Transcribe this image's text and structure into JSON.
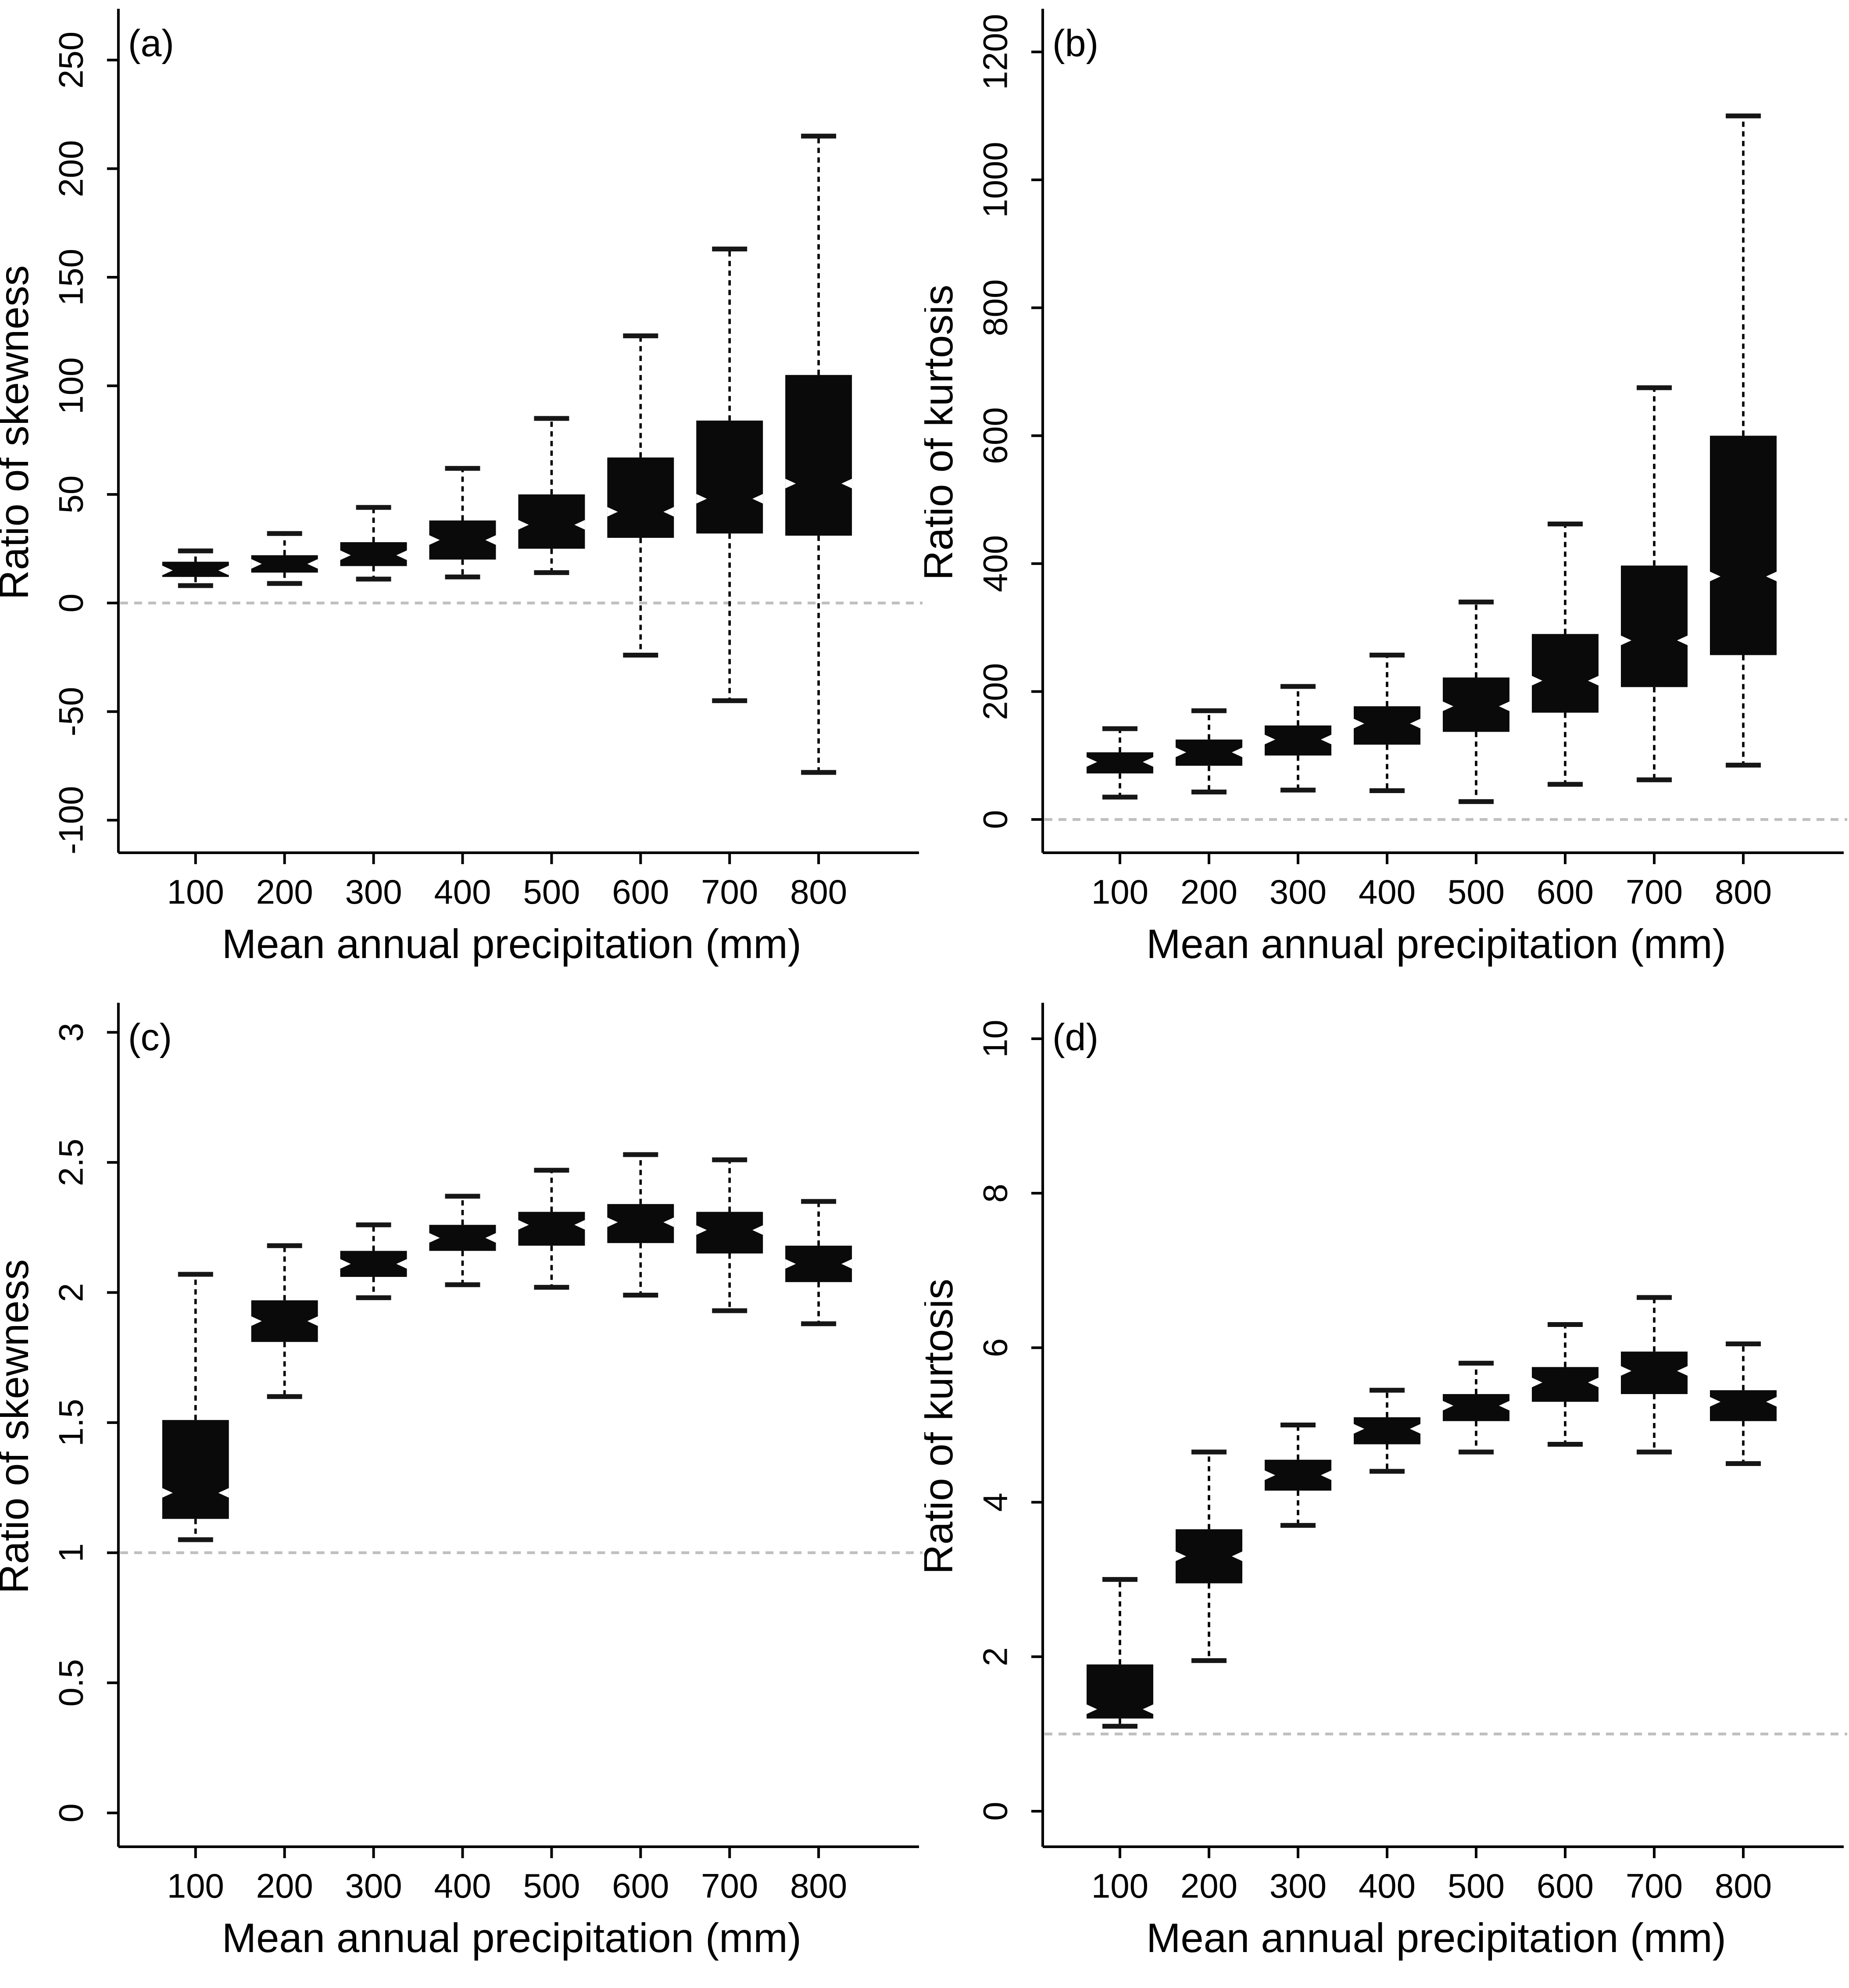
{
  "figure": {
    "background": "#ffffff",
    "text_color": "#000000",
    "box_fill": "#0a0a0a",
    "ref_line_color": "#bfbfbf",
    "x_axis_title": "Mean annual precipitation (mm)",
    "panel_letters": [
      "(a)",
      "(b)",
      "(c)",
      "(d)"
    ]
  },
  "chart_data": [
    {
      "type": "boxplot",
      "panel_label": "(a)",
      "title": "",
      "xlabel": "Mean annual precipitation (mm)",
      "ylabel": "Ratio of skewness",
      "categories": [
        100,
        200,
        300,
        400,
        500,
        600,
        700,
        800
      ],
      "xtick_labels": [
        "100",
        "200",
        "300",
        "400",
        "500",
        "600",
        "700",
        "800"
      ],
      "yticks": [
        -100,
        -50,
        0,
        50,
        100,
        150,
        200,
        250
      ],
      "ytick_labels": [
        "-100",
        "-50",
        "0",
        "50",
        "100",
        "150",
        "200",
        "250"
      ],
      "ylim": [
        -115,
        272
      ],
      "ref_line": 0,
      "legend": "none",
      "grid": false,
      "boxes": [
        {
          "category": 100,
          "whisker_low": 8,
          "q1": 12,
          "median": 15,
          "q3": 19,
          "whisker_high": 24
        },
        {
          "category": 200,
          "whisker_low": 9,
          "q1": 14,
          "median": 18,
          "q3": 22,
          "whisker_high": 32
        },
        {
          "category": 300,
          "whisker_low": 11,
          "q1": 17,
          "median": 22,
          "q3": 28,
          "whisker_high": 44
        },
        {
          "category": 400,
          "whisker_low": 12,
          "q1": 20,
          "median": 29,
          "q3": 38,
          "whisker_high": 62
        },
        {
          "category": 500,
          "whisker_low": 14,
          "q1": 25,
          "median": 36,
          "q3": 50,
          "whisker_high": 85
        },
        {
          "category": 600,
          "whisker_low": -24,
          "q1": 30,
          "median": 42,
          "q3": 67,
          "whisker_high": 123
        },
        {
          "category": 700,
          "whisker_low": -45,
          "q1": 32,
          "median": 48,
          "q3": 84,
          "whisker_high": 163
        },
        {
          "category": 800,
          "whisker_low": -78,
          "q1": 31,
          "median": 55,
          "q3": 105,
          "whisker_high": 215
        }
      ]
    },
    {
      "type": "boxplot",
      "panel_label": "(b)",
      "title": "",
      "xlabel": "Mean annual precipitation (mm)",
      "ylabel": "Ratio of kurtosis",
      "categories": [
        100,
        200,
        300,
        400,
        500,
        600,
        700,
        800
      ],
      "xtick_labels": [
        "100",
        "200",
        "300",
        "400",
        "500",
        "600",
        "700",
        "800"
      ],
      "yticks": [
        0,
        200,
        400,
        600,
        800,
        1000,
        1200
      ],
      "ytick_labels": [
        "0",
        "200",
        "400",
        "600",
        "800",
        "1000",
        "1200"
      ],
      "ylim": [
        -52,
        1262
      ],
      "ref_line": 0,
      "legend": "none",
      "grid": false,
      "boxes": [
        {
          "category": 100,
          "whisker_low": 35,
          "q1": 72,
          "median": 90,
          "q3": 105,
          "whisker_high": 142
        },
        {
          "category": 200,
          "whisker_low": 43,
          "q1": 84,
          "median": 105,
          "q3": 125,
          "whisker_high": 170
        },
        {
          "category": 300,
          "whisker_low": 46,
          "q1": 100,
          "median": 125,
          "q3": 147,
          "whisker_high": 208
        },
        {
          "category": 400,
          "whisker_low": 45,
          "q1": 117,
          "median": 150,
          "q3": 177,
          "whisker_high": 257
        },
        {
          "category": 500,
          "whisker_low": 28,
          "q1": 137,
          "median": 177,
          "q3": 222,
          "whisker_high": 340
        },
        {
          "category": 600,
          "whisker_low": 55,
          "q1": 167,
          "median": 217,
          "q3": 290,
          "whisker_high": 462
        },
        {
          "category": 700,
          "whisker_low": 62,
          "q1": 207,
          "median": 280,
          "q3": 397,
          "whisker_high": 675
        },
        {
          "category": 800,
          "whisker_low": 85,
          "q1": 257,
          "median": 380,
          "q3": 600,
          "whisker_high": 1100
        }
      ]
    },
    {
      "type": "boxplot",
      "panel_label": "(c)",
      "title": "",
      "xlabel": "Mean annual precipitation (mm)",
      "ylabel": "Ratio of skewness",
      "categories": [
        100,
        200,
        300,
        400,
        500,
        600,
        700,
        800
      ],
      "xtick_labels": [
        "100",
        "200",
        "300",
        "400",
        "500",
        "600",
        "700",
        "800"
      ],
      "yticks": [
        0,
        0.5,
        1,
        1.5,
        2,
        2.5,
        3
      ],
      "ytick_labels": [
        "0",
        "0.5",
        "1",
        "1.5",
        "2",
        "2.5",
        "3"
      ],
      "ylim": [
        -0.13,
        3.1
      ],
      "ref_line": 1,
      "legend": "none",
      "grid": false,
      "boxes": [
        {
          "category": 100,
          "whisker_low": 1.05,
          "q1": 1.13,
          "median": 1.23,
          "q3": 1.51,
          "whisker_high": 2.07
        },
        {
          "category": 200,
          "whisker_low": 1.6,
          "q1": 1.81,
          "median": 1.89,
          "q3": 1.97,
          "whisker_high": 2.18
        },
        {
          "category": 300,
          "whisker_low": 1.98,
          "q1": 2.06,
          "median": 2.11,
          "q3": 2.16,
          "whisker_high": 2.26
        },
        {
          "category": 400,
          "whisker_low": 2.03,
          "q1": 2.16,
          "median": 2.21,
          "q3": 2.26,
          "whisker_high": 2.37
        },
        {
          "category": 500,
          "whisker_low": 2.02,
          "q1": 2.18,
          "median": 2.26,
          "q3": 2.31,
          "whisker_high": 2.47
        },
        {
          "category": 600,
          "whisker_low": 1.99,
          "q1": 2.19,
          "median": 2.27,
          "q3": 2.34,
          "whisker_high": 2.53
        },
        {
          "category": 700,
          "whisker_low": 1.93,
          "q1": 2.15,
          "median": 2.24,
          "q3": 2.31,
          "whisker_high": 2.51
        },
        {
          "category": 800,
          "whisker_low": 1.88,
          "q1": 2.04,
          "median": 2.11,
          "q3": 2.18,
          "whisker_high": 2.35
        }
      ]
    },
    {
      "type": "boxplot",
      "panel_label": "(d)",
      "title": "",
      "xlabel": "Mean annual precipitation (mm)",
      "ylabel": "Ratio of kurtosis",
      "categories": [
        100,
        200,
        300,
        400,
        500,
        600,
        700,
        800
      ],
      "xtick_labels": [
        "100",
        "200",
        "300",
        "400",
        "500",
        "600",
        "700",
        "800"
      ],
      "yticks": [
        0,
        2,
        4,
        6,
        8,
        10
      ],
      "ytick_labels": [
        "0",
        "2",
        "4",
        "6",
        "8",
        "10"
      ],
      "ylim": [
        -0.46,
        10.42
      ],
      "ref_line": 1,
      "legend": "none",
      "grid": false,
      "boxes": [
        {
          "category": 100,
          "whisker_low": 1.1,
          "q1": 1.2,
          "median": 1.32,
          "q3": 1.9,
          "whisker_high": 3.0
        },
        {
          "category": 200,
          "whisker_low": 1.95,
          "q1": 2.95,
          "median": 3.3,
          "q3": 3.65,
          "whisker_high": 4.65
        },
        {
          "category": 300,
          "whisker_low": 3.7,
          "q1": 4.15,
          "median": 4.35,
          "q3": 4.55,
          "whisker_high": 5.0
        },
        {
          "category": 400,
          "whisker_low": 4.4,
          "q1": 4.75,
          "median": 4.95,
          "q3": 5.1,
          "whisker_high": 5.45
        },
        {
          "category": 500,
          "whisker_low": 4.65,
          "q1": 5.05,
          "median": 5.25,
          "q3": 5.4,
          "whisker_high": 5.8
        },
        {
          "category": 600,
          "whisker_low": 4.75,
          "q1": 5.3,
          "median": 5.55,
          "q3": 5.75,
          "whisker_high": 6.3
        },
        {
          "category": 700,
          "whisker_low": 4.65,
          "q1": 5.4,
          "median": 5.7,
          "q3": 5.95,
          "whisker_high": 6.65
        },
        {
          "category": 800,
          "whisker_low": 4.5,
          "q1": 5.05,
          "median": 5.3,
          "q3": 5.45,
          "whisker_high": 6.05
        }
      ]
    }
  ]
}
